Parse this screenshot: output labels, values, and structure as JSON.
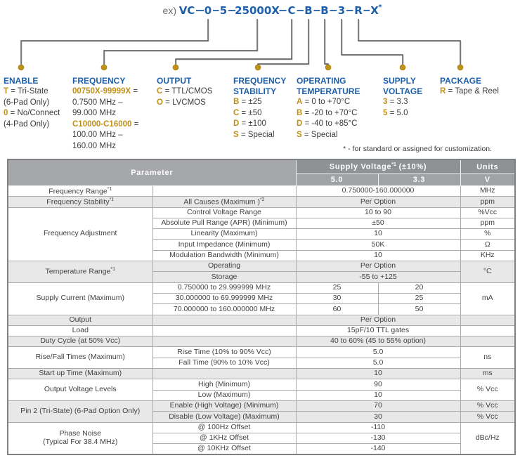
{
  "colors": {
    "blue": "#1e5fa9",
    "gold": "#c09018",
    "header_dark_gray": "#8f9295",
    "header_light_gray": "#a0a2a5",
    "row_shade": "#e8e8e9"
  },
  "part_number": {
    "prefix": "ex)",
    "segments": [
      "VC",
      "0",
      "5",
      "25000X",
      "C",
      "B",
      "B",
      "3",
      "R",
      "X"
    ],
    "star": "*"
  },
  "legend": {
    "columns": [
      {
        "title": [
          "ENABLE"
        ],
        "items": [
          {
            "code": "T",
            "text": "= Tri-State"
          },
          {
            "code": "",
            "text": "(6-Pad Only)"
          },
          {
            "code": "0",
            "text": "= No/Connect"
          },
          {
            "code": "",
            "text": "(4-Pad Only)"
          }
        ]
      },
      {
        "title": [
          "FREQUENCY"
        ],
        "items": [
          {
            "code": "00750X-99999X",
            "text": "="
          },
          {
            "code": "",
            "text": "0.7500 MHz –"
          },
          {
            "code": "",
            "text": "99.000 MHz"
          },
          {
            "code": "C10000-C16000",
            "text": "="
          },
          {
            "code": "",
            "text": "100.00 MHz –"
          },
          {
            "code": "",
            "text": "160.00 MHz"
          }
        ]
      },
      {
        "title": [
          "OUTPUT"
        ],
        "items": [
          {
            "code": "C",
            "text": "= TTL/CMOS"
          },
          {
            "code": "O",
            "text": "= LVCMOS"
          }
        ]
      },
      {
        "title": [
          "FREQUENCY",
          "STABILITY"
        ],
        "items": [
          {
            "code": "B",
            "text": "= ±25"
          },
          {
            "code": "C",
            "text": "= ±50"
          },
          {
            "code": "D",
            "text": "= ±100"
          },
          {
            "code": "S",
            "text": "= Special"
          }
        ]
      },
      {
        "title": [
          "OPERATING",
          "TEMPERATURE"
        ],
        "items": [
          {
            "code": "A",
            "text": "= 0 to +70°C"
          },
          {
            "code": "B",
            "text": "= -20 to +70°C"
          },
          {
            "code": "D",
            "text": "= -40 to +85°C"
          },
          {
            "code": "S",
            "text": "= Special"
          }
        ]
      },
      {
        "title": [
          "SUPPLY",
          "VOLTAGE"
        ],
        "items": [
          {
            "code": "3",
            "text": "= 3.3"
          },
          {
            "code": "5",
            "text": "= 5.0"
          }
        ]
      },
      {
        "title": [
          "PACKAGE"
        ],
        "items": [
          {
            "code": "R",
            "text": "= Tape & Reel"
          }
        ]
      }
    ]
  },
  "note": "* - for standard or assigned for customization.",
  "table": {
    "header": {
      "parameter": "Parameter",
      "supply_voltage": "Supply Voltage",
      "supply_voltage_sup": "*1",
      "supply_voltage_suffix": " (±10%)",
      "col_50": "5.0",
      "col_33": "3.3",
      "units": "Units",
      "units_sub": "V"
    },
    "groups": [
      {
        "name": "Frequency Range",
        "sup": "*1",
        "shaded": false,
        "rows": [
          {
            "sub": "",
            "value": "0.750000-160.000000",
            "unit": "MHz"
          }
        ]
      },
      {
        "name": "Frequency Stability",
        "sup": "*1",
        "shaded": true,
        "rows": [
          {
            "sub": "All Causes (Maximum )",
            "sub_sup": "*2",
            "value": "Per Option",
            "unit": "ppm"
          }
        ]
      },
      {
        "name": "Frequency Adjustment",
        "shaded": false,
        "rows": [
          {
            "sub": "Control Voltage Range",
            "value": "10 to 90",
            "unit": "%Vcc"
          },
          {
            "sub": "Absolute Pull Range (APR) (Minimum)",
            "value": "±50",
            "unit": "ppm"
          },
          {
            "sub": "Linearity (Maximum)",
            "value": "10",
            "unit": "%"
          },
          {
            "sub": "Input Impedance (Minimum)",
            "value": "50K",
            "unit": "Ω"
          },
          {
            "sub": "Modulation Bandwidth (Minimum)",
            "value": "10",
            "unit": "KHz"
          }
        ]
      },
      {
        "name": "Temperature Range",
        "sup": "*1",
        "shaded": true,
        "unit_merged": "°C",
        "rows": [
          {
            "sub": "Operating",
            "value": "Per Option"
          },
          {
            "sub": "Storage",
            "value": "-55 to +125"
          }
        ]
      },
      {
        "name": "Supply Current (Maximum)",
        "shaded": false,
        "unit_merged": "mA",
        "rows": [
          {
            "sub": "0.750000 to 29.999999 MHz",
            "v50": "25",
            "v33": "20"
          },
          {
            "sub": "30.000000 to 69.999999 MHz",
            "v50": "30",
            "v33": "25"
          },
          {
            "sub": "70.000000 to 160.000000 MHz",
            "v50": "60",
            "v33": "50"
          }
        ]
      },
      {
        "name": "Output",
        "shaded": true,
        "rows": [
          {
            "sub": "",
            "value": "Per Option",
            "unit": ""
          }
        ]
      },
      {
        "name": "Load",
        "shaded": false,
        "rows": [
          {
            "sub": "",
            "value": "15pF/10 TTL gates",
            "unit": ""
          }
        ]
      },
      {
        "name": "Duty Cycle (at 50% Vcc)",
        "shaded": true,
        "rows": [
          {
            "sub": "",
            "value": "40 to 60% (45 to 55% option)",
            "unit": ""
          }
        ]
      },
      {
        "name": "Rise/Fall Times (Maximum)",
        "shaded": false,
        "unit_merged": "ns",
        "rows": [
          {
            "sub": "Rise Time (10% to 90% Vcc)",
            "value": "5.0"
          },
          {
            "sub": "Fall Time (90% to 10% Vcc)",
            "value": "5.0"
          }
        ]
      },
      {
        "name": "Start up Time (Maximum)",
        "shaded": true,
        "rows": [
          {
            "sub": "",
            "value": "10",
            "unit": "ms"
          }
        ]
      },
      {
        "name": "Output Voltage Levels",
        "shaded": false,
        "unit_merged": "% Vcc",
        "rows": [
          {
            "sub": "High (Minimum)",
            "value": "90"
          },
          {
            "sub": "Low (Maximum)",
            "value": "10"
          }
        ]
      },
      {
        "name": "Pin 2 (Tri-State) (6-Pad Option Only)",
        "shaded": true,
        "rows": [
          {
            "sub": "Enable (High Voltage) (Minimum)",
            "value": "70",
            "unit": "% Vcc"
          },
          {
            "sub": "Disable (Low Voltage) (Maximum)",
            "value": "30",
            "unit": "% Vcc"
          }
        ]
      },
      {
        "name": "Phase Noise\n(Typical For 38.4 MHz)",
        "shaded": false,
        "unit_merged": "dBc/Hz",
        "rows": [
          {
            "sub": "@ 100Hz Offset",
            "value": "-110"
          },
          {
            "sub": "@ 1KHz Offset",
            "value": "-130"
          },
          {
            "sub": "@ 10KHz Offset",
            "value": "-140"
          }
        ]
      }
    ]
  }
}
